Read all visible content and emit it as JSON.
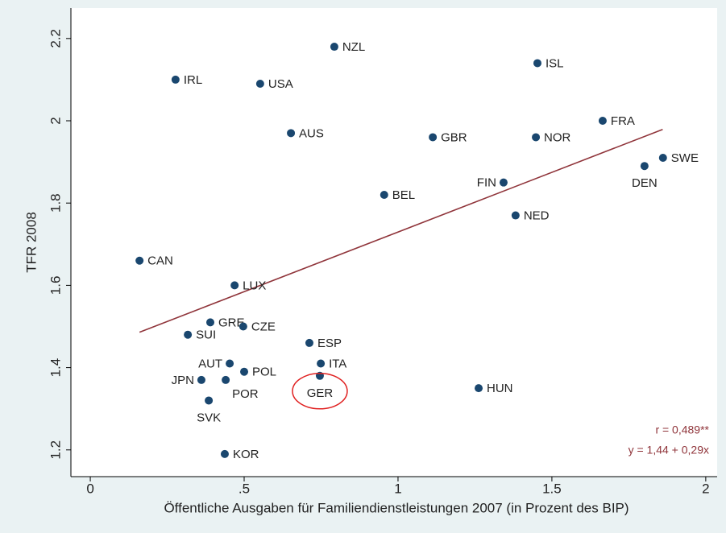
{
  "chart_data": {
    "type": "scatter",
    "x_label": "Öffentliche Ausgaben für Familiendienstleistungen 2007 (in Prozent des BIP)",
    "y_label": "TFR 2008",
    "xlim": [
      -0.063,
      2.037
    ],
    "ylim": [
      1.135,
      2.274
    ],
    "xticks": [
      0,
      {
        "value": 0.5,
        "label": ".5"
      },
      1,
      1.5,
      2
    ],
    "yticks": [
      1.2,
      1.4,
      1.6,
      1.8,
      2,
      2.2
    ],
    "color": "#1a476f",
    "points": [
      {
        "label": "IRL",
        "x": 0.277,
        "y": 2.1
      },
      {
        "label": "NZL",
        "x": 0.793,
        "y": 2.18
      },
      {
        "label": "USA",
        "x": 0.552,
        "y": 2.09
      },
      {
        "label": "ISL",
        "x": 1.453,
        "y": 2.14
      },
      {
        "label": "AUS",
        "x": 0.652,
        "y": 1.97
      },
      {
        "label": "GBR",
        "x": 1.113,
        "y": 1.96
      },
      {
        "label": "NOR",
        "x": 1.448,
        "y": 1.96
      },
      {
        "label": "FRA",
        "x": 1.665,
        "y": 2.0
      },
      {
        "label": "SWE",
        "x": 1.861,
        "y": 1.91
      },
      {
        "label": "DEN",
        "x": 1.801,
        "y": 1.89
      },
      {
        "label": "FIN",
        "x": 1.343,
        "y": 1.85
      },
      {
        "label": "BEL",
        "x": 0.955,
        "y": 1.82
      },
      {
        "label": "NED",
        "x": 1.382,
        "y": 1.77
      },
      {
        "label": "CAN",
        "x": 0.16,
        "y": 1.66
      },
      {
        "label": "LUX",
        "x": 0.469,
        "y": 1.6
      },
      {
        "label": "GRE",
        "x": 0.39,
        "y": 1.51
      },
      {
        "label": "CZE",
        "x": 0.497,
        "y": 1.5
      },
      {
        "label": "SUI",
        "x": 0.317,
        "y": 1.48
      },
      {
        "label": "ESP",
        "x": 0.712,
        "y": 1.46
      },
      {
        "label": "AUT",
        "x": 0.453,
        "y": 1.41
      },
      {
        "label": "ITA",
        "x": 0.749,
        "y": 1.41
      },
      {
        "label": "POL",
        "x": 0.5,
        "y": 1.39
      },
      {
        "label": "GER",
        "x": 0.746,
        "y": 1.38
      },
      {
        "label": "JPN",
        "x": 0.361,
        "y": 1.37
      },
      {
        "label": "POR",
        "x": 0.44,
        "y": 1.37
      },
      {
        "label": "SVK",
        "x": 0.385,
        "y": 1.32
      },
      {
        "label": "HUN",
        "x": 1.262,
        "y": 1.35
      },
      {
        "label": "KOR",
        "x": 0.437,
        "y": 1.19
      }
    ],
    "fit_line": {
      "color": "#90353b",
      "x": [
        0.16,
        1.86
      ],
      "y": [
        1.486,
        1.979
      ]
    },
    "annotations": [
      "r = 0,489**",
      "y = 1,44 + 0,29x"
    ]
  }
}
